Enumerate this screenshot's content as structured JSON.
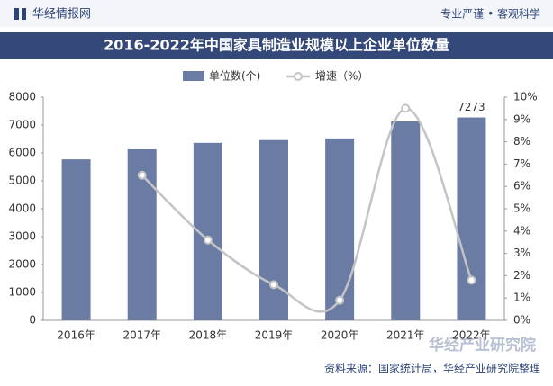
{
  "header": {
    "brand": "华经情报网",
    "slogan": "专业严谨 • 客观科学"
  },
  "chart_data": {
    "type": "bar",
    "title": "2016-2022年中国家具制造业规模以上企业单位数量",
    "categories": [
      "2016年",
      "2017年",
      "2018年",
      "2019年",
      "2020年",
      "2021年",
      "2022年"
    ],
    "series": [
      {
        "name": "单位数(个)",
        "color": "#6a7ca3",
        "values": [
          5770,
          6130,
          6360,
          6460,
          6520,
          7130,
          7273
        ]
      },
      {
        "name": "增速（%）",
        "color": "#c4c4c4",
        "axis": "y2",
        "values": [
          null,
          6.5,
          3.6,
          1.6,
          0.9,
          9.5,
          1.8
        ]
      }
    ],
    "ylim": [
      0,
      8000
    ],
    "yticks": [
      0,
      1000,
      2000,
      3000,
      4000,
      5000,
      6000,
      7000,
      8000
    ],
    "y2lim": [
      0,
      10
    ],
    "y2ticks": [
      {
        "value": 0,
        "label": "0%"
      },
      {
        "value": 1,
        "label": "1%"
      },
      {
        "value": 2,
        "label": "2%"
      },
      {
        "value": 3,
        "label": "3%"
      },
      {
        "value": 4,
        "label": "4%"
      },
      {
        "value": 5,
        "label": "5%"
      },
      {
        "value": 6,
        "label": "6%"
      },
      {
        "value": 7,
        "label": "7%"
      },
      {
        "value": 8,
        "label": "8%"
      },
      {
        "value": 9,
        "label": "9%"
      },
      {
        "value": 10,
        "label": "10%"
      }
    ],
    "source": "资料来源：国家统计局，华经产业研究院整理",
    "watermark": "华经产业研究院"
  }
}
